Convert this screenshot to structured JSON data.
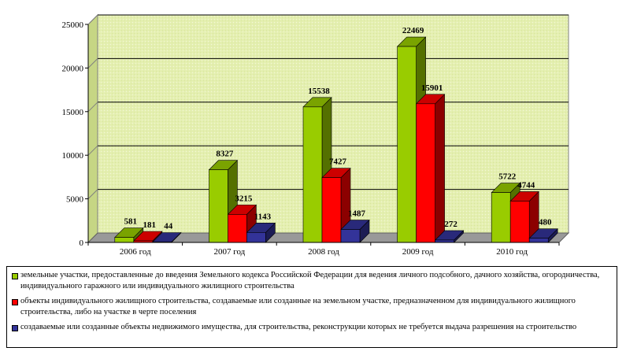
{
  "chart_data": {
    "type": "bar",
    "categories": [
      "2006 год",
      "2007 год",
      "2008 год",
      "2009 год",
      "2010 год"
    ],
    "series": [
      {
        "name": "земельные участки, предоставленные до введения Земельного кодекса Российской Федерации для ведения личного подсобного, дачного хозяйства, огородничества, индивидуального гаражного или индивидуального жилищного строительства",
        "values": [
          581,
          8327,
          15538,
          22469,
          5722
        ],
        "color": "#99cc00"
      },
      {
        "name": "объекты индивидуального жилищного строительства, создаваемые или созданные на земельном участке, предназначенном для индивидуального жилищного строительства, либо на участке в черте поселения",
        "values": [
          181,
          3215,
          7427,
          15901,
          4744
        ],
        "color": "#ff0000"
      },
      {
        "name": "создаваемые или созданные объекты недвижимого имущества, для строительства, реконструкции которых не требуется выдача разрешения на строительство",
        "values": [
          44,
          1143,
          1487,
          272,
          480
        ],
        "color": "#333399"
      }
    ],
    "data_labels": [
      [
        "581",
        "8327",
        "15538",
        "22469",
        "5722"
      ],
      [
        "181",
        "3215",
        "7427",
        "15901",
        "4744"
      ],
      [
        "44",
        "1143",
        "1487",
        "272",
        "480"
      ]
    ],
    "yticks": [
      "0",
      "5000",
      "10000",
      "15000",
      "20000",
      "25000"
    ],
    "ylim": [
      0,
      25000
    ],
    "grid": true,
    "legend_position": "bottom",
    "wall_color": "#e6f0b4",
    "floor_color": "#999999"
  }
}
